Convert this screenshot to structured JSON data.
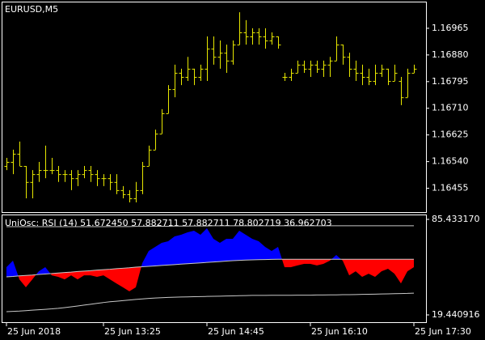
{
  "chart_data": [
    {
      "type": "ohlc",
      "title": "EURUSD,M5",
      "color": "#e8e800",
      "categories": [
        "25 Jun 2018",
        null,
        null,
        null,
        null,
        null,
        null,
        null,
        null,
        null,
        null,
        null,
        null,
        null,
        null,
        "25 Jun 13:25",
        null,
        null,
        null,
        null,
        null,
        null,
        null,
        null,
        null,
        null,
        null,
        null,
        null,
        null,
        null,
        "25 Jun 14:45",
        null,
        null,
        null,
        null,
        null,
        null,
        null,
        null,
        null,
        null,
        null,
        null,
        null,
        null,
        null,
        "25 Jun 16:10",
        null,
        null,
        null,
        null,
        null,
        null,
        null,
        null,
        null,
        null,
        null,
        null,
        null,
        null,
        null,
        "25 Jun 17:30"
      ],
      "open": [
        1.16526,
        1.16539,
        1.16565,
        1.16526,
        1.16475,
        1.165,
        1.16513,
        1.16513,
        1.16513,
        1.165,
        1.165,
        1.16487,
        1.165,
        1.16513,
        1.165,
        1.16487,
        1.16487,
        1.16475,
        1.16449,
        1.16436,
        1.16423,
        1.16449,
        1.16526,
        1.16578,
        1.16629,
        1.16694,
        1.16771,
        1.16823,
        1.1681,
        1.16836,
        1.1681,
        1.16836,
        1.169,
        1.16874,
        1.16887,
        1.16862,
        1.16913,
        1.16952,
        1.16939,
        1.16952,
        1.16939,
        1.16926,
        1.16939,
        1.1681,
        1.1681,
        1.16823,
        1.16849,
        1.16836,
        1.16849,
        1.16836,
        1.16849,
        1.16862,
        1.16913,
        1.16874,
        1.16836,
        1.16823,
        1.1681,
        1.16797,
        1.16823,
        1.16836,
        1.16797,
        1.16797,
        1.16745,
        1.16823
      ],
      "high": [
        1.16552,
        1.16578,
        1.16604,
        1.16526,
        1.16513,
        1.16539,
        1.16591,
        1.16552,
        1.16526,
        1.16513,
        1.16513,
        1.16513,
        1.16526,
        1.16526,
        1.16513,
        1.165,
        1.165,
        1.165,
        1.16462,
        1.16449,
        1.16475,
        1.16539,
        1.16591,
        1.16642,
        1.16707,
        1.16784,
        1.16849,
        1.16836,
        1.16874,
        1.16836,
        1.16849,
        1.16939,
        1.16939,
        1.16926,
        1.16913,
        1.16926,
        1.17016,
        1.16991,
        1.16965,
        1.16965,
        1.16965,
        1.16952,
        1.16939,
        1.16823,
        1.16836,
        1.16862,
        1.16862,
        1.16862,
        1.16862,
        1.16862,
        1.16874,
        1.16939,
        1.16913,
        1.16887,
        1.16862,
        1.16849,
        1.16836,
        1.16849,
        1.16849,
        1.16836,
        1.16849,
        1.1681,
        1.16836,
        1.16849
      ],
      "low": [
        1.16513,
        1.165,
        1.16526,
        1.16423,
        1.16423,
        1.16475,
        1.16487,
        1.165,
        1.16475,
        1.16475,
        1.16449,
        1.16462,
        1.16487,
        1.16475,
        1.16462,
        1.16462,
        1.16449,
        1.16436,
        1.16423,
        1.1641,
        1.1641,
        1.16436,
        1.16526,
        1.16578,
        1.16629,
        1.16694,
        1.16745,
        1.16784,
        1.16797,
        1.16784,
        1.16797,
        1.16797,
        1.16849,
        1.16836,
        1.16823,
        1.16849,
        1.16913,
        1.16913,
        1.16913,
        1.16913,
        1.169,
        1.16913,
        1.169,
        1.16797,
        1.16797,
        1.16823,
        1.16823,
        1.1681,
        1.16823,
        1.1681,
        1.1681,
        1.16862,
        1.16849,
        1.1681,
        1.16797,
        1.16784,
        1.16784,
        1.16784,
        1.1681,
        1.16784,
        1.16797,
        1.1672,
        1.16745,
        1.16823
      ],
      "close": [
        1.16539,
        1.16565,
        1.16526,
        1.16475,
        1.165,
        1.16513,
        1.16513,
        1.16513,
        1.165,
        1.165,
        1.16487,
        1.165,
        1.16513,
        1.165,
        1.16487,
        1.16487,
        1.16475,
        1.16449,
        1.16436,
        1.16423,
        1.16449,
        1.16526,
        1.16578,
        1.16629,
        1.16694,
        1.16771,
        1.16823,
        1.1681,
        1.16836,
        1.1681,
        1.16836,
        1.169,
        1.16874,
        1.16887,
        1.16862,
        1.16913,
        1.16952,
        1.16939,
        1.16952,
        1.16939,
        1.16926,
        1.16939,
        1.16913,
        1.1681,
        1.16823,
        1.16849,
        1.16836,
        1.16849,
        1.16836,
        1.16849,
        1.16862,
        1.16913,
        1.16874,
        1.16836,
        1.16823,
        1.1681,
        1.16797,
        1.16823,
        1.16836,
        1.16797,
        1.16823,
        1.16745,
        1.16823,
        1.16836
      ],
      "ylim": [
        1.16379,
        1.1705
      ],
      "yticks": [
        1.16965,
        {
          "value": 1.1688,
          "label": "1.16880"
        },
        1.16795,
        {
          "value": 1.1671,
          "label": "1.16710"
        },
        1.16625,
        {
          "value": 1.1654,
          "label": "1.16540"
        },
        1.16455
      ]
    },
    {
      "type": "oscillator",
      "title": "UniOsc: RSI (14) 51.672450 57.882711 57.882711 78.802719 36.962703",
      "up_color": "#0000ff",
      "down_color": "#ff0000",
      "line_color": "#c8c8c8",
      "values": [
        52.4,
        56.9,
        44.0,
        38.5,
        44.0,
        49.6,
        52.4,
        46.8,
        45.7,
        44.0,
        46.8,
        44.0,
        46.8,
        46.8,
        45.7,
        46.8,
        44.0,
        41.2,
        38.5,
        35.7,
        38.5,
        55.2,
        63.6,
        66.4,
        69.2,
        70.3,
        73.7,
        74.8,
        76.5,
        77.6,
        74.8,
        79.3,
        72.0,
        69.2,
        72.0,
        72.0,
        77.6,
        74.8,
        72.0,
        70.3,
        66.4,
        63.6,
        66.4,
        52.4,
        52.4,
        53.6,
        54.7,
        54.7,
        53.6,
        54.7,
        56.9,
        60.8,
        56.9,
        46.8,
        49.6,
        45.7,
        47.9,
        45.7,
        49.6,
        51.3,
        47.9,
        41.2,
        49.6,
        52.4
      ],
      "signal": [
        45.7,
        46.0,
        46.4,
        46.7,
        47.0,
        47.4,
        47.7,
        48.0,
        48.4,
        48.7,
        49.0,
        49.4,
        49.7,
        50.0,
        50.4,
        50.7,
        51.0,
        51.4,
        51.7,
        52.0,
        52.4,
        52.7,
        53.0,
        53.3,
        53.6,
        53.9,
        54.2,
        54.5,
        54.8,
        55.1,
        55.4,
        55.7,
        56.0,
        56.3,
        56.6,
        56.9,
        57.1,
        57.3,
        57.5,
        57.6,
        57.7,
        57.8,
        57.9,
        57.9,
        57.9,
        57.9,
        57.9,
        57.9,
        57.9,
        57.9,
        57.9,
        57.9,
        57.9,
        57.9,
        57.9,
        57.9,
        57.9,
        57.9,
        57.9,
        57.9,
        57.9,
        57.9,
        57.9,
        57.9
      ],
      "upper": [
        80.4,
        80.4,
        80.4,
        80.4,
        80.4,
        80.4,
        80.4,
        80.4,
        80.4,
        80.4,
        80.4,
        80.4,
        80.4,
        80.4,
        80.4,
        80.4,
        80.5,
        80.5,
        80.5,
        80.5,
        80.6,
        80.6,
        80.6,
        80.7,
        80.7,
        80.7,
        80.8,
        80.8,
        80.8,
        80.9,
        80.9,
        80.9,
        81.0,
        81.0,
        81.0,
        81.0,
        81.0,
        81.0,
        81.0,
        81.0,
        81.0,
        81.0,
        81.0,
        81.0,
        81.0,
        81.0,
        81.0,
        81.0,
        81.0,
        81.0,
        81.0,
        81.0,
        81.0,
        81.0,
        81.0,
        81.0,
        81.0,
        81.0,
        81.0,
        81.0,
        81.0,
        81.0,
        81.0,
        81.0
      ],
      "lower": [
        21.7,
        21.9,
        22.1,
        22.4,
        22.7,
        23.0,
        23.3,
        23.6,
        24.0,
        24.5,
        25.0,
        25.6,
        26.2,
        26.8,
        27.4,
        28.0,
        28.5,
        28.9,
        29.3,
        29.7,
        30.1,
        30.5,
        30.8,
        31.1,
        31.3,
        31.5,
        31.7,
        31.8,
        31.9,
        32.0,
        32.1,
        32.2,
        32.3,
        32.4,
        32.5,
        32.6,
        32.7,
        32.8,
        32.9,
        32.9,
        32.9,
        33.0,
        33.0,
        33.0,
        33.0,
        33.1,
        33.1,
        33.1,
        33.2,
        33.2,
        33.3,
        33.3,
        33.4,
        33.4,
        33.5,
        33.6,
        33.7,
        33.8,
        33.9,
        34.0,
        34.1,
        34.2,
        34.3,
        34.5
      ],
      "ylim": [
        14.4,
        88.79
      ],
      "yticks": [
        {
          "value": 85.43317,
          "label": "85.433170"
        },
        19.440916
      ]
    }
  ]
}
